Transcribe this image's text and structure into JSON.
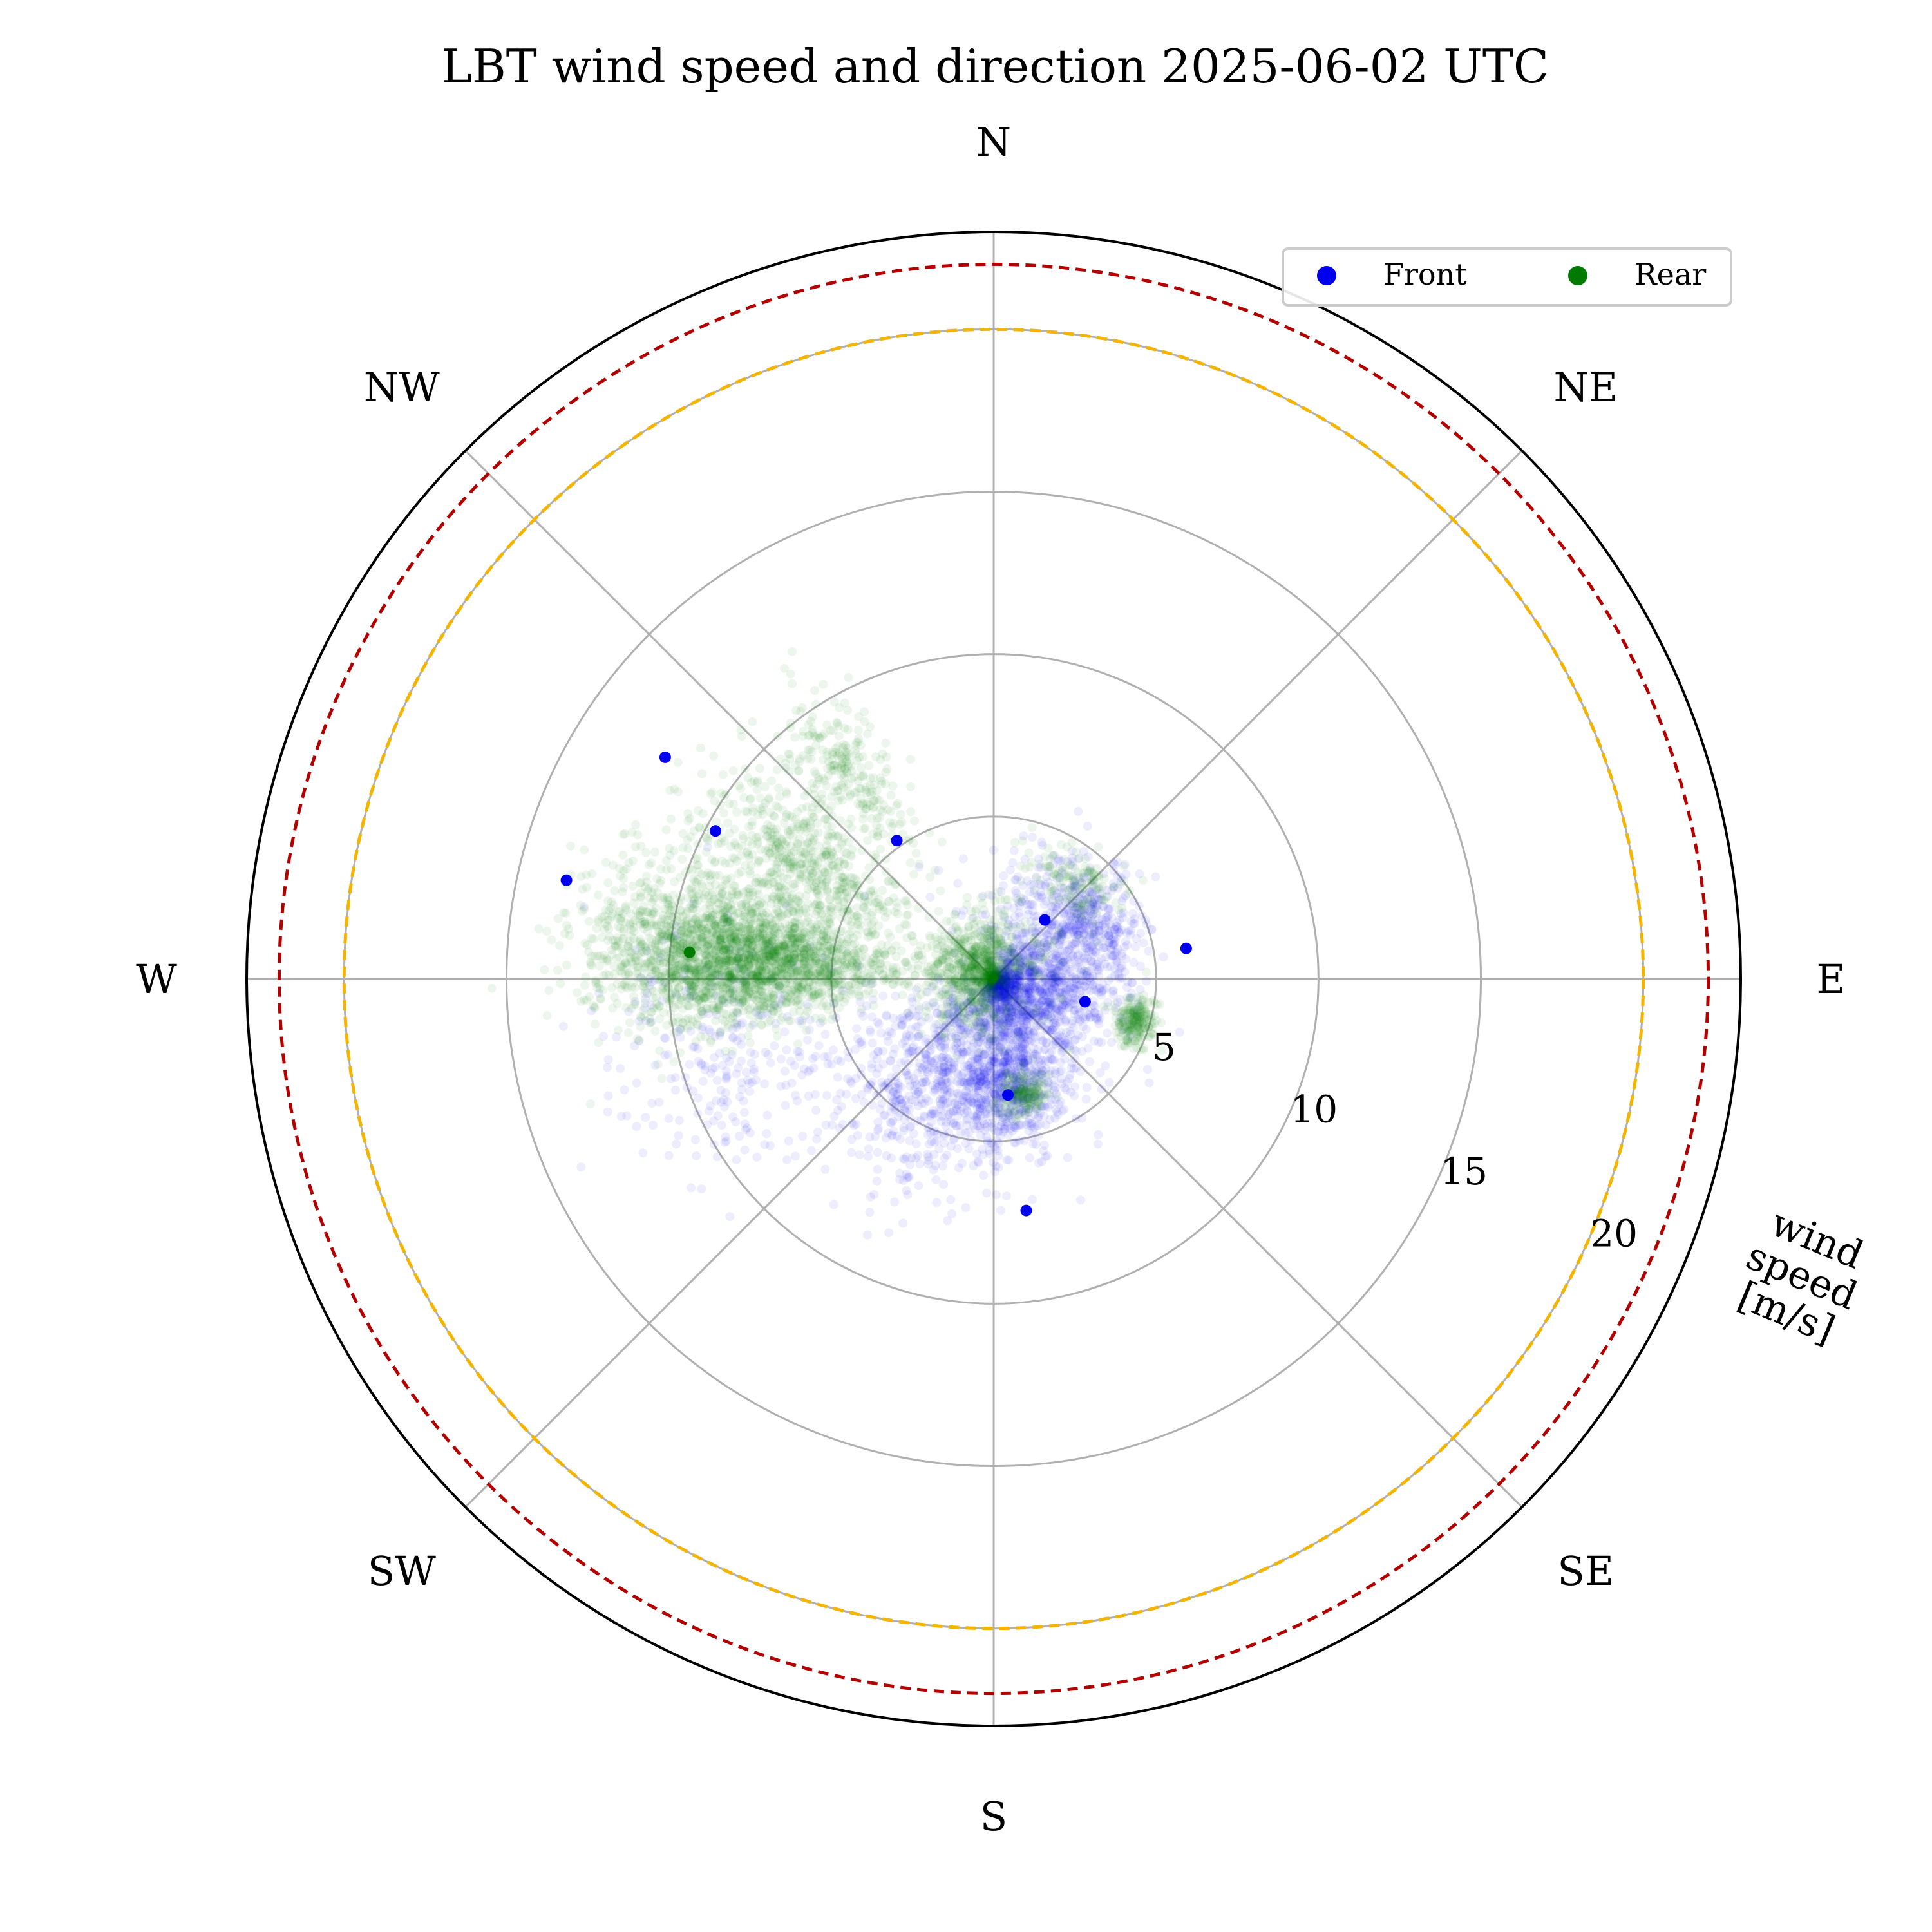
{
  "chart_data": {
    "type": "scatter",
    "projection": "polar",
    "title": "LBT wind speed and direction 2025-06-02 UTC",
    "direction_labels": [
      "N",
      "NE",
      "E",
      "SE",
      "S",
      "SW",
      "W",
      "NW"
    ],
    "radial_axis": {
      "label": "wind speed [m/s]",
      "label_lines": [
        "wind",
        "speed",
        "[m/s]"
      ],
      "ticks": [
        5,
        10,
        15,
        20
      ],
      "rlim": [
        0,
        23
      ]
    },
    "grid": true,
    "legend": {
      "placement": "top-right",
      "entries": [
        "Front",
        "Rear"
      ]
    },
    "reference_circles": [
      {
        "speed": 20,
        "color": "#f4b400",
        "style": "dashed"
      },
      {
        "speed": 22,
        "color": "#b30000",
        "style": "dashed"
      }
    ],
    "colors": {
      "front": "#0000ee",
      "rear": "#007a00",
      "grid": "#b0b0b0"
    },
    "series": [
      {
        "name": "Front",
        "color": "#0000ee",
        "highlighted_points": [
          {
            "direction_deg": 304,
            "speed": 12.2
          },
          {
            "direction_deg": 298,
            "speed": 9.7
          },
          {
            "direction_deg": 283,
            "speed": 13.5
          },
          {
            "direction_deg": 81,
            "speed": 6.0
          },
          {
            "direction_deg": 104,
            "speed": 2.9
          },
          {
            "direction_deg": 173,
            "speed": 3.6
          },
          {
            "direction_deg": 172,
            "speed": 7.2
          },
          {
            "direction_deg": 41,
            "speed": 2.4
          },
          {
            "direction_deg": 325,
            "speed": 5.2
          }
        ],
        "clusters": [
          {
            "center_direction_deg": 120,
            "center_speed": 1.5,
            "spread_deg": 110,
            "spread_speed": 2.6,
            "count": 1800
          },
          {
            "center_direction_deg": 210,
            "center_speed": 4.0,
            "spread_deg": 45,
            "spread_speed": 2.8,
            "count": 700
          },
          {
            "center_direction_deg": 175,
            "center_speed": 3.5,
            "spread_deg": 25,
            "spread_speed": 1.5,
            "count": 400
          },
          {
            "center_direction_deg": 60,
            "center_speed": 3.5,
            "spread_deg": 35,
            "spread_speed": 1.5,
            "count": 400
          },
          {
            "center_direction_deg": 255,
            "center_speed": 9.0,
            "spread_deg": 25,
            "spread_speed": 3.0,
            "count": 250
          }
        ]
      },
      {
        "name": "Rear",
        "color": "#007a00",
        "highlighted_points": [
          {
            "direction_deg": 275,
            "speed": 9.4
          }
        ],
        "clusters": [
          {
            "center_direction_deg": 275,
            "center_speed": 8.0,
            "spread_deg": 14,
            "spread_speed": 4.0,
            "count": 2600
          },
          {
            "center_direction_deg": 300,
            "center_speed": 7.0,
            "spread_deg": 18,
            "spread_speed": 3.5,
            "count": 700
          },
          {
            "center_direction_deg": 325,
            "center_speed": 7.5,
            "spread_deg": 10,
            "spread_speed": 2.5,
            "count": 250
          },
          {
            "center_direction_deg": 300,
            "center_speed": 1.0,
            "spread_deg": 140,
            "spread_speed": 1.3,
            "count": 900
          },
          {
            "center_direction_deg": 107,
            "center_speed": 4.6,
            "spread_deg": 10,
            "spread_speed": 0.6,
            "count": 220
          },
          {
            "center_direction_deg": 165,
            "center_speed": 3.7,
            "spread_deg": 12,
            "spread_speed": 0.7,
            "count": 180
          },
          {
            "center_direction_deg": 40,
            "center_speed": 4.0,
            "spread_deg": 25,
            "spread_speed": 1.0,
            "count": 150
          }
        ]
      }
    ]
  }
}
